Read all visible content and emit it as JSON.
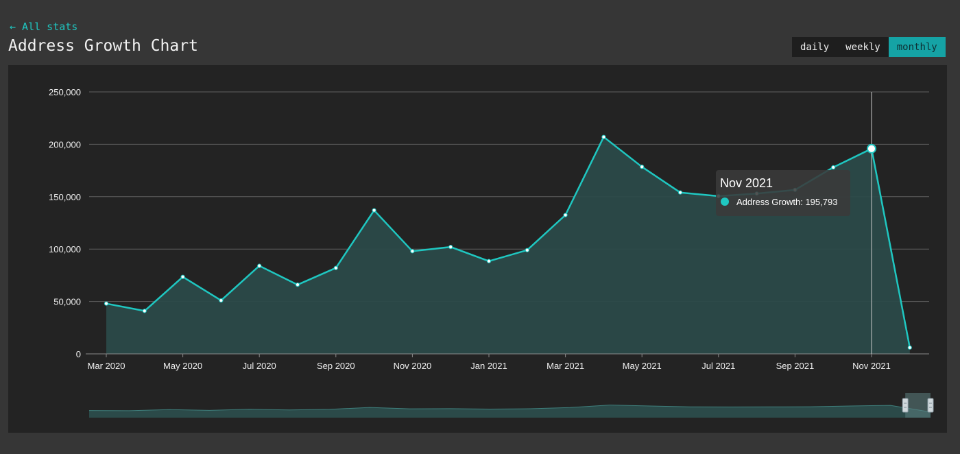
{
  "nav": {
    "back_label": "← All stats"
  },
  "header": {
    "title": "Address Growth Chart"
  },
  "period_toggle": {
    "options": [
      "daily",
      "weekly",
      "monthly"
    ],
    "selected": "monthly"
  },
  "colors": {
    "accent": "#1fc7c1",
    "area_fill": "#2b4a49",
    "panel_bg": "#232323",
    "page_bg": "#363636"
  },
  "tooltip": {
    "title": "Nov 2021",
    "series_label": "Address Growth",
    "value_text": "195,793"
  },
  "chart_data": {
    "type": "area",
    "x": [
      "2020-03",
      "2020-04",
      "2020-05",
      "2020-06",
      "2020-07",
      "2020-08",
      "2020-09",
      "2020-10",
      "2020-11",
      "2020-12",
      "2021-01",
      "2021-02",
      "2021-03",
      "2021-04",
      "2021-05",
      "2021-06",
      "2021-07",
      "2021-08",
      "2021-09",
      "2021-10",
      "2021-11",
      "2021-12"
    ],
    "x_tick_labels": [
      "Mar 2020",
      "May 2020",
      "Jul 2020",
      "Sep 2020",
      "Nov 2020",
      "Jan 2021",
      "Mar 2021",
      "May 2021",
      "Jul 2021",
      "Sep 2021",
      "Nov 2021"
    ],
    "series": [
      {
        "name": "Address Growth",
        "values": [
          48000,
          41000,
          73500,
          51000,
          84000,
          66000,
          82000,
          137000,
          98000,
          102000,
          88500,
          99000,
          132500,
          207000,
          178500,
          154000,
          150500,
          153000,
          156500,
          178000,
          195793,
          6000
        ]
      }
    ],
    "y_ticks": [
      "0",
      "50,000",
      "100,000",
      "150,000",
      "200,000",
      "250,000"
    ],
    "ylim": [
      0,
      250000
    ],
    "highlighted_point": "2021-11",
    "grid": true,
    "data_zoom": {
      "start": 0.97,
      "end": 1.0
    }
  }
}
